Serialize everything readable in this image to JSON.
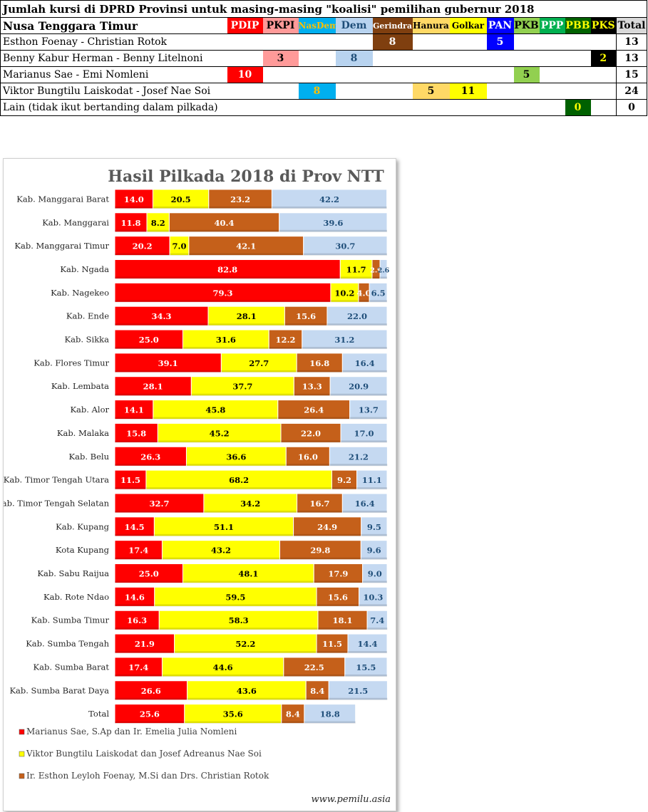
{
  "table": {
    "title": "Jumlah kursi di DPRD Provinsi untuk masing-masing \"koalisi\" pemilihan gubernur 2018",
    "region": "Nusa Tenggara Timur",
    "parties": [
      {
        "label": "PDIP",
        "bg": "#ff0000",
        "fg": "#ffffff"
      },
      {
        "label": "PKPI",
        "bg": "#ff9a99",
        "fg": "#000000"
      },
      {
        "label": "NasDem",
        "bg": "#00afef",
        "fg": "#ffc000"
      },
      {
        "label": "Dem",
        "bg": "#b8d3ef",
        "fg": "#1f4e79"
      },
      {
        "label": "Gerindra",
        "bg": "#7f3f0f",
        "fg": "#ffffff"
      },
      {
        "label": "Hanura",
        "bg": "#ffd966",
        "fg": "#000000"
      },
      {
        "label": "Golkar",
        "bg": "#ffff00",
        "fg": "#000000"
      },
      {
        "label": "PAN",
        "bg": "#0000ff",
        "fg": "#ffffff"
      },
      {
        "label": "PKB",
        "bg": "#92d050",
        "fg": "#000000"
      },
      {
        "label": "PPP",
        "bg": "#00b050",
        "fg": "#ffffff"
      },
      {
        "label": "PBB",
        "bg": "#006100",
        "fg": "#ffff00"
      },
      {
        "label": "PKS",
        "bg": "#000000",
        "fg": "#ffff00"
      }
    ],
    "total_label": "Total",
    "rows": [
      {
        "name": "Esthon Foenay - Christian Rotok",
        "seats": [
          "",
          "",
          "",
          "",
          "8",
          "",
          "",
          "5",
          "",
          "",
          "",
          ""
        ],
        "total": "13"
      },
      {
        "name": "Benny Kabur Herman - Benny Litelnoni",
        "seats": [
          "",
          "3",
          "",
          "8",
          "",
          "",
          "",
          "",
          "",
          "",
          "",
          "2"
        ],
        "total": "13"
      },
      {
        "name": "Marianus Sae - Emi Nomleni",
        "seats": [
          "10",
          "",
          "",
          "",
          "",
          "",
          "",
          "",
          "5",
          "",
          "",
          ""
        ],
        "total": "15"
      },
      {
        "name": "Viktor Bungtilu Laiskodat - Josef Nae Soi",
        "seats": [
          "",
          "",
          "8",
          "",
          "",
          "5",
          "11",
          "",
          "",
          "",
          "",
          ""
        ],
        "total": "24"
      },
      {
        "name": "Lain (tidak ikut bertanding dalam pilkada)",
        "seats": [
          "",
          "",
          "",
          "",
          "",
          "",
          "",
          "",
          "",
          "",
          "0",
          ""
        ],
        "total": "0"
      }
    ]
  },
  "chart_data": {
    "type": "bar",
    "orientation": "horizontal",
    "stacked": true,
    "title": "Hasil Pilkada 2018 di Prov NTT",
    "categories": [
      "Kab. Manggarai Barat",
      "Kab. Manggarai",
      "Kab. Manggarai Timur",
      "Kab. Ngada",
      "Kab. Nagekeo",
      "Kab. Ende",
      "Kab. Sikka",
      "Kab. Flores Timur",
      "Kab. Lembata",
      "Kab. Alor",
      "Kab. Malaka",
      "Kab. Belu",
      "Kab. Timor Tengah Utara",
      "Kab. Timor Tengah Selatan",
      "Kab. Kupang",
      "Kota Kupang",
      "Kab. Sabu Raijua",
      "Kab. Rote Ndao",
      "Kab. Sumba Timur",
      "Kab. Sumba Tengah",
      "Kab. Sumba Barat",
      "Kab. Sumba Barat Daya",
      "Total"
    ],
    "series": [
      {
        "name": "Marianus Sae, S.Ap dan Ir. Emelia Julia Nomleni",
        "color": "#ff0000",
        "label_color": "#ffffff",
        "values": [
          14.0,
          11.8,
          20.2,
          82.8,
          79.3,
          34.3,
          25.0,
          39.1,
          28.1,
          14.1,
          15.8,
          26.3,
          11.5,
          32.7,
          14.5,
          17.4,
          25.0,
          14.6,
          16.3,
          21.9,
          17.4,
          26.6,
          25.6
        ]
      },
      {
        "name": "Viktor Bungtilu Laiskodat dan Josef Adreanus Nae Soi",
        "color": "#ffff00",
        "label_color": "#000000",
        "values": [
          20.5,
          8.2,
          7.0,
          11.7,
          10.2,
          28.1,
          31.6,
          27.7,
          37.7,
          45.8,
          45.2,
          36.6,
          68.2,
          34.2,
          51.1,
          43.2,
          48.1,
          59.5,
          58.3,
          52.2,
          44.6,
          43.6,
          35.6
        ]
      },
      {
        "name": "Ir. Esthon Leyloh Foenay, M.Si dan Drs. Christian Rotok",
        "color": "#c5601a",
        "label_color": "#ffffff",
        "values": [
          23.2,
          40.4,
          42.1,
          2.9,
          4.0,
          15.6,
          12.2,
          16.8,
          13.3,
          26.4,
          22.0,
          16.0,
          9.2,
          16.7,
          24.9,
          29.8,
          17.9,
          15.6,
          18.1,
          11.5,
          22.5,
          8.4,
          8.4
        ]
      },
      {
        "color": "#c5d9f1",
        "label_color": "#1f4e79",
        "values": [
          42.2,
          39.6,
          30.7,
          2.6,
          6.5,
          22.0,
          31.2,
          16.4,
          20.9,
          13.7,
          17.0,
          21.2,
          11.1,
          16.4,
          9.5,
          9.6,
          9.0,
          10.3,
          7.4,
          14.4,
          15.5,
          21.5,
          18.8
        ]
      }
    ],
    "xlim": [
      0,
      100
    ],
    "grid": false,
    "legend_position": "bottom-left",
    "source": "www.pemilu.asia"
  }
}
